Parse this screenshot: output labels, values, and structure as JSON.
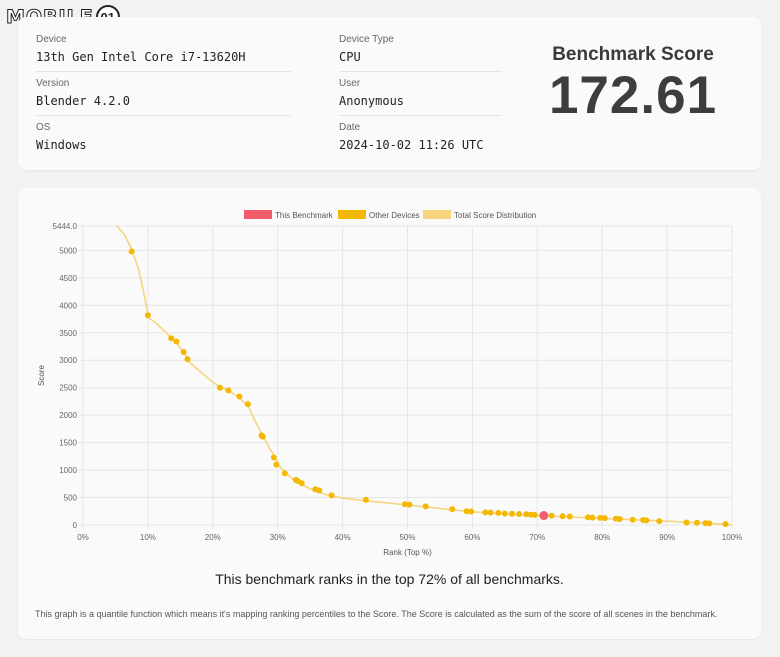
{
  "brand": {
    "logo_text": "MOBILE",
    "logo_badge": "01"
  },
  "info": {
    "device_label": "Device",
    "device_value": "13th Gen Intel Core i7-13620H",
    "version_label": "Version",
    "version_value": "Blender 4.2.0",
    "os_label": "OS",
    "os_value": "Windows",
    "device_type_label": "Device Type",
    "device_type_value": "CPU",
    "user_label": "User",
    "user_value": "Anonymous",
    "date_label": "Date",
    "date_value": "2024-10-02 11:26 UTC"
  },
  "score": {
    "title": "Benchmark Score",
    "value": "172.61"
  },
  "summary": "This benchmark ranks in the top 72% of all benchmarks.",
  "note": "This graph is a quantile function which means it's mapping ranking percentiles to the Score. The Score is calculated as the sum of the score of all scenes in the benchmark.",
  "colors": {
    "this_benchmark": "#f25c6b",
    "other_devices": "#f5b800",
    "distribution": "#f7d47d"
  },
  "chart_data": {
    "type": "line",
    "xlabel": "Rank (Top %)",
    "ylabel": "Score",
    "xlim": [
      0,
      100
    ],
    "ylim": [
      0,
      5444
    ],
    "x_ticks": [
      "0%",
      "10%",
      "20%",
      "30%",
      "40%",
      "50%",
      "60%",
      "70%",
      "80%",
      "90%",
      "100%"
    ],
    "y_ticks": [
      "5444.0",
      "5000",
      "4500",
      "4000",
      "3500",
      "3000",
      "2500",
      "2000",
      "1500",
      "1000",
      "500",
      "0"
    ],
    "legend": [
      "This Benchmark",
      "Other Devices",
      "Total Score Distribution"
    ],
    "legend_position": "top",
    "grid": true,
    "series": [
      {
        "name": "Total Score Distribution",
        "points": [
          [
            5.2,
            5444
          ],
          [
            6.3,
            5300
          ],
          [
            7.4,
            5050
          ],
          [
            8.6,
            4650
          ],
          [
            9.4,
            4200
          ],
          [
            10.1,
            3780
          ],
          [
            11.5,
            3650
          ],
          [
            13.0,
            3480
          ],
          [
            14.5,
            3300
          ],
          [
            15.5,
            3150
          ],
          [
            16.5,
            2950
          ],
          [
            18.0,
            2800
          ],
          [
            19.5,
            2650
          ],
          [
            21.0,
            2520
          ],
          [
            22.5,
            2440
          ],
          [
            24.0,
            2330
          ],
          [
            25.5,
            2150
          ],
          [
            26.5,
            1900
          ],
          [
            27.6,
            1650
          ],
          [
            28.5,
            1450
          ],
          [
            29.5,
            1250
          ],
          [
            30.2,
            1080
          ],
          [
            31.3,
            940
          ],
          [
            32.5,
            820
          ],
          [
            34.0,
            720
          ],
          [
            35.5,
            630
          ],
          [
            37.5,
            550
          ],
          [
            40,
            490
          ],
          [
            43.5,
            440
          ],
          [
            47,
            400
          ],
          [
            50,
            365
          ],
          [
            55,
            300
          ],
          [
            60,
            240
          ],
          [
            65,
            200
          ],
          [
            70,
            170
          ],
          [
            75,
            145
          ],
          [
            80,
            120
          ],
          [
            85,
            95
          ],
          [
            90,
            70
          ],
          [
            95,
            40
          ],
          [
            98,
            20
          ],
          [
            100,
            0
          ]
        ]
      },
      {
        "name": "Other Devices",
        "points": [
          [
            7.5,
            4980
          ],
          [
            10.0,
            3820
          ],
          [
            13.6,
            3400
          ],
          [
            14.4,
            3340
          ],
          [
            15.5,
            3150
          ],
          [
            16.1,
            3020
          ],
          [
            21.1,
            2500
          ],
          [
            22.4,
            2450
          ],
          [
            24.1,
            2340
          ],
          [
            25.4,
            2200
          ],
          [
            27.5,
            1630
          ],
          [
            27.7,
            1610
          ],
          [
            29.4,
            1230
          ],
          [
            29.8,
            1100
          ],
          [
            31.1,
            940
          ],
          [
            32.8,
            820
          ],
          [
            33.1,
            800
          ],
          [
            33.7,
            760
          ],
          [
            35.8,
            650
          ],
          [
            36.4,
            630
          ],
          [
            38.3,
            540
          ],
          [
            43.6,
            460
          ],
          [
            49.6,
            380
          ],
          [
            50.3,
            370
          ],
          [
            52.8,
            340
          ],
          [
            56.9,
            290
          ],
          [
            59.1,
            250
          ],
          [
            59.8,
            245
          ],
          [
            62.0,
            230
          ],
          [
            62.8,
            225
          ],
          [
            64.0,
            220
          ],
          [
            65.0,
            210
          ],
          [
            66.1,
            205
          ],
          [
            67.2,
            200
          ],
          [
            68.3,
            195
          ],
          [
            69.0,
            190
          ],
          [
            69.6,
            185
          ],
          [
            72.2,
            170
          ],
          [
            73.9,
            160
          ],
          [
            75.0,
            155
          ],
          [
            77.8,
            140
          ],
          [
            78.5,
            135
          ],
          [
            79.7,
            130
          ],
          [
            80.4,
            125
          ],
          [
            82.1,
            115
          ],
          [
            82.7,
            110
          ],
          [
            84.7,
            95
          ],
          [
            86.3,
            90
          ],
          [
            86.8,
            85
          ],
          [
            88.8,
            70
          ],
          [
            93.0,
            45
          ],
          [
            94.6,
            40
          ],
          [
            95.9,
            35
          ],
          [
            96.5,
            30
          ],
          [
            99.0,
            15
          ]
        ]
      },
      {
        "name": "This Benchmark",
        "points": [
          [
            71.0,
            172.61
          ]
        ]
      }
    ]
  }
}
